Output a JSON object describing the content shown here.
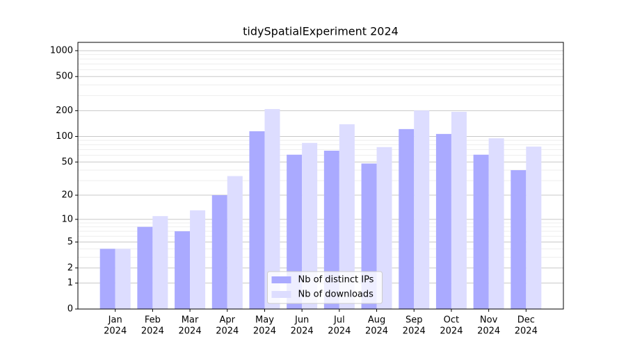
{
  "chart_data": {
    "type": "bar",
    "title": "tidySpatialExperiment 2024",
    "categories": [
      [
        "Jan",
        "2024"
      ],
      [
        "Feb",
        "2024"
      ],
      [
        "Mar",
        "2024"
      ],
      [
        "Apr",
        "2024"
      ],
      [
        "May",
        "2024"
      ],
      [
        "Jun",
        "2024"
      ],
      [
        "Jul",
        "2024"
      ],
      [
        "Aug",
        "2024"
      ],
      [
        "Sep",
        "2024"
      ],
      [
        "Oct",
        "2024"
      ],
      [
        "Nov",
        "2024"
      ],
      [
        "Dec",
        "2024"
      ]
    ],
    "series": [
      {
        "name": "Nb of distinct IPs",
        "color": "#aaaaff",
        "values": [
          4,
          8,
          7,
          20,
          115,
          61,
          68,
          48,
          122,
          107,
          61,
          40
        ]
      },
      {
        "name": "Nb of downloads",
        "color": "#ddddff",
        "values": [
          4,
          11,
          13,
          34,
          209,
          84,
          139,
          75,
          201,
          194,
          95,
          76
        ]
      }
    ],
    "yscale": "log1p",
    "ylim": [
      0,
      1249
    ],
    "yticks": [
      0,
      1,
      2,
      5,
      10,
      20,
      50,
      100,
      200,
      500,
      1000
    ],
    "minor_yticks": [
      3,
      4,
      6,
      7,
      8,
      9,
      30,
      40,
      60,
      70,
      80,
      90,
      300,
      400,
      600,
      700,
      800,
      900
    ],
    "grid": true,
    "legend": "lower center"
  }
}
